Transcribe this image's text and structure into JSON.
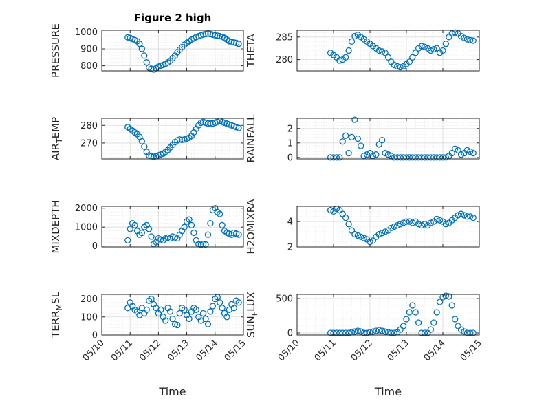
{
  "figure": {
    "title": "Figure 2 high",
    "colors": {
      "marker": "#0072BD",
      "axis": "#262626",
      "grid": "#d9d9d9"
    }
  },
  "chart_data": [
    {
      "type": "scatter",
      "ylabel": "PRESSURE",
      "xlabel": "",
      "title": "Figure 2 high",
      "xlim": [
        "05/10",
        "05/15"
      ],
      "ylim": [
        770,
        1010
      ],
      "yticks": [
        800,
        900,
        1000
      ],
      "xticks": [
        "05/10",
        "05/11",
        "05/12",
        "05/13",
        "05/14",
        "05/15"
      ],
      "grid": true,
      "x": [
        "05/10 22:00",
        "05/11 00:00",
        "05/11 02:00",
        "05/11 04:00",
        "05/11 06:00",
        "05/11 08:00",
        "05/11 10:00",
        "05/11 12:00",
        "05/11 14:00",
        "05/11 16:00",
        "05/11 18:00",
        "05/11 20:00",
        "05/11 22:00",
        "05/12 00:00",
        "05/12 02:00",
        "05/12 04:00",
        "05/12 06:00",
        "05/12 08:00",
        "05/12 10:00",
        "05/12 12:00",
        "05/12 14:00",
        "05/12 16:00",
        "05/12 18:00",
        "05/12 20:00",
        "05/12 22:00",
        "05/13 00:00",
        "05/13 02:00",
        "05/13 04:00",
        "05/13 06:00",
        "05/13 08:00",
        "05/13 10:00",
        "05/13 12:00",
        "05/13 14:00",
        "05/13 16:00",
        "05/13 18:00",
        "05/13 20:00",
        "05/13 22:00",
        "05/14 00:00",
        "05/14 02:00",
        "05/14 04:00",
        "05/14 06:00",
        "05/14 08:00",
        "05/14 10:00",
        "05/14 12:00",
        "05/14 14:00",
        "05/14 16:00",
        "05/14 18:00",
        "05/14 20:00"
      ],
      "y": [
        968,
        965,
        958,
        952,
        945,
        930,
        900,
        860,
        820,
        790,
        782,
        778,
        785,
        795,
        800,
        805,
        812,
        820,
        830,
        845,
        860,
        880,
        895,
        910,
        925,
        935,
        945,
        955,
        962,
        970,
        975,
        980,
        985,
        988,
        990,
        988,
        984,
        980,
        978,
        975,
        972,
        965,
        955,
        945,
        940,
        938,
        935,
        930
      ]
    },
    {
      "type": "scatter",
      "ylabel": "THETA",
      "xlabel": "",
      "xlim": [
        "05/10",
        "05/15"
      ],
      "ylim": [
        277.5,
        286.5
      ],
      "yticks": [
        280,
        285
      ],
      "xticks": [
        "05/10",
        "05/11",
        "05/12",
        "05/13",
        "05/14",
        "05/15"
      ],
      "grid": true,
      "x": [
        "05/10 22:00",
        "05/11 00:00",
        "05/11 02:00",
        "05/11 04:00",
        "05/11 06:00",
        "05/11 08:00",
        "05/11 10:00",
        "05/11 12:00",
        "05/11 14:00",
        "05/11 16:00",
        "05/11 18:00",
        "05/11 20:00",
        "05/11 22:00",
        "05/12 00:00",
        "05/12 02:00",
        "05/12 04:00",
        "05/12 06:00",
        "05/12 08:00",
        "05/12 10:00",
        "05/12 12:00",
        "05/12 14:00",
        "05/12 16:00",
        "05/12 18:00",
        "05/12 20:00",
        "05/12 22:00",
        "05/13 00:00",
        "05/13 02:00",
        "05/13 04:00",
        "05/13 06:00",
        "05/13 08:00",
        "05/13 10:00",
        "05/13 12:00",
        "05/13 14:00",
        "05/13 16:00",
        "05/13 18:00",
        "05/13 20:00",
        "05/13 22:00",
        "05/14 00:00",
        "05/14 02:00",
        "05/14 04:00",
        "05/14 06:00",
        "05/14 08:00",
        "05/14 10:00",
        "05/14 12:00",
        "05/14 14:00",
        "05/14 16:00",
        "05/14 18:00",
        "05/14 20:00"
      ],
      "y": [
        281.5,
        281.0,
        280.5,
        279.8,
        280.0,
        280.5,
        282.0,
        284.0,
        285.2,
        285.5,
        285.0,
        284.5,
        284.0,
        283.5,
        283.0,
        282.5,
        282.0,
        281.8,
        281.5,
        280.5,
        279.5,
        278.8,
        278.5,
        278.3,
        278.5,
        279.0,
        279.5,
        280.5,
        281.5,
        282.5,
        283.0,
        282.8,
        282.5,
        282.0,
        282.3,
        282.5,
        281.5,
        282.0,
        283.5,
        285.0,
        285.8,
        286.0,
        285.8,
        285.2,
        284.8,
        284.5,
        284.3,
        284.2
      ]
    },
    {
      "type": "scatter",
      "ylabel": "AIR_T_EMP",
      "xlabel": "",
      "xlim": [
        "05/10",
        "05/15"
      ],
      "ylim": [
        261,
        284
      ],
      "yticks": [
        270,
        280
      ],
      "xticks": [
        "05/10",
        "05/11",
        "05/12",
        "05/13",
        "05/14",
        "05/15"
      ],
      "grid": true,
      "x": [
        "05/10 22:00",
        "05/11 00:00",
        "05/11 02:00",
        "05/11 04:00",
        "05/11 06:00",
        "05/11 08:00",
        "05/11 10:00",
        "05/11 12:00",
        "05/11 14:00",
        "05/11 16:00",
        "05/11 18:00",
        "05/11 20:00",
        "05/11 22:00",
        "05/12 00:00",
        "05/12 02:00",
        "05/12 04:00",
        "05/12 06:00",
        "05/12 08:00",
        "05/12 10:00",
        "05/12 12:00",
        "05/12 14:00",
        "05/12 16:00",
        "05/12 18:00",
        "05/12 20:00",
        "05/12 22:00",
        "05/13 00:00",
        "05/13 02:00",
        "05/13 04:00",
        "05/13 06:00",
        "05/13 08:00",
        "05/13 10:00",
        "05/13 12:00",
        "05/13 14:00",
        "05/13 16:00",
        "05/13 18:00",
        "05/13 20:00",
        "05/13 22:00",
        "05/14 00:00",
        "05/14 02:00",
        "05/14 04:00",
        "05/14 06:00",
        "05/14 08:00",
        "05/14 10:00",
        "05/14 12:00",
        "05/14 14:00",
        "05/14 16:00",
        "05/14 18:00",
        "05/14 20:00"
      ],
      "y": [
        279.0,
        278.0,
        277.0,
        276.0,
        275.0,
        273.5,
        271.0,
        268.0,
        265.0,
        263.0,
        262.5,
        262.2,
        262.5,
        263.0,
        263.5,
        264.0,
        265.0,
        266.0,
        267.5,
        269.0,
        270.5,
        271.5,
        272.0,
        271.8,
        272.0,
        272.5,
        273.0,
        274.0,
        276.0,
        278.0,
        280.0,
        281.5,
        282.0,
        281.5,
        281.0,
        281.2,
        281.0,
        281.5,
        282.0,
        282.5,
        282.0,
        281.5,
        281.0,
        280.5,
        280.0,
        279.5,
        279.0,
        278.5
      ]
    },
    {
      "type": "scatter",
      "ylabel": "RAINFALL",
      "xlabel": "",
      "xlim": [
        "05/10",
        "05/15"
      ],
      "ylim": [
        -0.1,
        2.7
      ],
      "yticks": [
        0,
        1,
        2
      ],
      "xticks": [
        "05/10",
        "05/11",
        "05/12",
        "05/13",
        "05/14",
        "05/15"
      ],
      "grid": true,
      "x": [
        "05/10 22:00",
        "05/11 00:00",
        "05/11 02:00",
        "05/11 04:00",
        "05/11 06:00",
        "05/11 08:00",
        "05/11 10:00",
        "05/11 12:00",
        "05/11 14:00",
        "05/11 16:00",
        "05/11 18:00",
        "05/11 20:00",
        "05/11 22:00",
        "05/12 00:00",
        "05/12 02:00",
        "05/12 04:00",
        "05/12 06:00",
        "05/12 08:00",
        "05/12 10:00",
        "05/12 12:00",
        "05/12 14:00",
        "05/12 16:00",
        "05/12 18:00",
        "05/12 20:00",
        "05/12 22:00",
        "05/13 00:00",
        "05/13 02:00",
        "05/13 04:00",
        "05/13 06:00",
        "05/13 08:00",
        "05/13 10:00",
        "05/13 12:00",
        "05/13 14:00",
        "05/13 16:00",
        "05/13 18:00",
        "05/13 20:00",
        "05/13 22:00",
        "05/14 00:00",
        "05/14 02:00",
        "05/14 04:00",
        "05/14 06:00",
        "05/14 08:00",
        "05/14 10:00",
        "05/14 12:00",
        "05/14 14:00",
        "05/14 16:00",
        "05/14 18:00",
        "05/14 20:00"
      ],
      "y": [
        0,
        0,
        0,
        0,
        1.1,
        1.5,
        0.3,
        1.4,
        2.6,
        1.3,
        0.8,
        0.1,
        0.2,
        0.3,
        0.1,
        0.2,
        0.9,
        1.2,
        0.3,
        0.2,
        0.1,
        0,
        0,
        0,
        0,
        0,
        0,
        0,
        0,
        0,
        0,
        0,
        0,
        0,
        0,
        0,
        0,
        0,
        0,
        0.1,
        0.3,
        0.6,
        0.5,
        0.2,
        0.3,
        0.5,
        0.4,
        0.3
      ]
    },
    {
      "type": "scatter",
      "ylabel": "MIXDEPTH",
      "xlabel": "",
      "xlim": [
        "05/10",
        "05/15"
      ],
      "ylim": [
        -50,
        2100
      ],
      "yticks": [
        0,
        1000,
        2000
      ],
      "xticks": [
        "05/10",
        "05/11",
        "05/12",
        "05/13",
        "05/14",
        "05/15"
      ],
      "grid": true,
      "x": [
        "05/10 22:00",
        "05/11 00:00",
        "05/11 02:00",
        "05/11 04:00",
        "05/11 06:00",
        "05/11 08:00",
        "05/11 10:00",
        "05/11 12:00",
        "05/11 14:00",
        "05/11 16:00",
        "05/11 18:00",
        "05/11 20:00",
        "05/11 22:00",
        "05/12 00:00",
        "05/12 02:00",
        "05/12 04:00",
        "05/12 06:00",
        "05/12 08:00",
        "05/12 10:00",
        "05/12 12:00",
        "05/12 14:00",
        "05/12 16:00",
        "05/12 18:00",
        "05/12 20:00",
        "05/12 22:00",
        "05/13 00:00",
        "05/13 02:00",
        "05/13 04:00",
        "05/13 06:00",
        "05/13 08:00",
        "05/13 10:00",
        "05/13 12:00",
        "05/13 14:00",
        "05/13 16:00",
        "05/13 18:00",
        "05/13 20:00",
        "05/13 22:00",
        "05/14 00:00",
        "05/14 02:00",
        "05/14 04:00",
        "05/14 06:00",
        "05/14 08:00",
        "05/14 10:00",
        "05/14 12:00",
        "05/14 14:00",
        "05/14 16:00",
        "05/14 18:00",
        "05/14 20:00"
      ],
      "y": [
        300,
        900,
        1200,
        1100,
        800,
        600,
        700,
        1000,
        1100,
        900,
        500,
        100,
        200,
        400,
        350,
        300,
        400,
        450,
        400,
        500,
        450,
        400,
        600,
        800,
        1000,
        1300,
        1400,
        1100,
        700,
        300,
        100,
        50,
        100,
        80,
        600,
        1200,
        1900,
        2000,
        1800,
        1700,
        1100,
        800,
        700,
        650,
        600,
        700,
        650,
        600
      ]
    },
    {
      "type": "scatter",
      "ylabel": "H2OMIXRA",
      "xlabel": "",
      "xlim": [
        "05/10",
        "05/15"
      ],
      "ylim": [
        2,
        5.2
      ],
      "yticks": [
        2,
        4
      ],
      "xticks": [
        "05/10",
        "05/11",
        "05/12",
        "05/13",
        "05/14",
        "05/15"
      ],
      "grid": true,
      "x": [
        "05/10 22:00",
        "05/11 00:00",
        "05/11 02:00",
        "05/11 04:00",
        "05/11 06:00",
        "05/11 08:00",
        "05/11 10:00",
        "05/11 12:00",
        "05/11 14:00",
        "05/11 16:00",
        "05/11 18:00",
        "05/11 20:00",
        "05/11 22:00",
        "05/12 00:00",
        "05/12 02:00",
        "05/12 04:00",
        "05/12 06:00",
        "05/12 08:00",
        "05/12 10:00",
        "05/12 12:00",
        "05/12 14:00",
        "05/12 16:00",
        "05/12 18:00",
        "05/12 20:00",
        "05/12 22:00",
        "05/13 00:00",
        "05/13 02:00",
        "05/13 04:00",
        "05/13 06:00",
        "05/13 08:00",
        "05/13 10:00",
        "05/13 12:00",
        "05/13 14:00",
        "05/13 16:00",
        "05/13 18:00",
        "05/13 20:00",
        "05/13 22:00",
        "05/14 00:00",
        "05/14 02:00",
        "05/14 04:00",
        "05/14 06:00",
        "05/14 08:00",
        "05/14 10:00",
        "05/14 12:00",
        "05/14 14:00",
        "05/14 16:00",
        "05/14 18:00",
        "05/14 20:00"
      ],
      "y": [
        4.9,
        4.8,
        5.0,
        4.9,
        4.6,
        4.3,
        3.8,
        3.3,
        3.0,
        2.9,
        2.8,
        2.7,
        2.6,
        2.4,
        2.5,
        2.8,
        3.0,
        3.1,
        3.2,
        3.3,
        3.5,
        3.6,
        3.7,
        3.8,
        3.9,
        4.0,
        4.0,
        3.9,
        4.0,
        3.8,
        3.7,
        3.8,
        3.7,
        3.9,
        4.0,
        4.2,
        4.1,
        4.0,
        3.8,
        3.9,
        4.1,
        4.3,
        4.5,
        4.6,
        4.5,
        4.4,
        4.4,
        4.3
      ]
    },
    {
      "type": "scatter",
      "ylabel": "TERR_M_SL",
      "xlabel": "Time",
      "xlim": [
        "05/10",
        "05/15"
      ],
      "ylim": [
        0,
        225
      ],
      "yticks": [
        0,
        100,
        200
      ],
      "xticks": [
        "05/10",
        "05/11",
        "05/12",
        "05/13",
        "05/14",
        "05/15"
      ],
      "grid": true,
      "x": [
        "05/10 22:00",
        "05/11 00:00",
        "05/11 02:00",
        "05/11 04:00",
        "05/11 06:00",
        "05/11 08:00",
        "05/11 10:00",
        "05/11 12:00",
        "05/11 14:00",
        "05/11 16:00",
        "05/11 18:00",
        "05/11 20:00",
        "05/11 22:00",
        "05/12 00:00",
        "05/12 02:00",
        "05/12 04:00",
        "05/12 06:00",
        "05/12 08:00",
        "05/12 10:00",
        "05/12 12:00",
        "05/12 14:00",
        "05/12 16:00",
        "05/12 18:00",
        "05/12 20:00",
        "05/12 22:00",
        "05/13 00:00",
        "05/13 02:00",
        "05/13 04:00",
        "05/13 06:00",
        "05/13 08:00",
        "05/13 10:00",
        "05/13 12:00",
        "05/13 14:00",
        "05/13 16:00",
        "05/13 18:00",
        "05/13 20:00",
        "05/13 22:00",
        "05/14 00:00",
        "05/14 02:00",
        "05/14 04:00",
        "05/14 06:00",
        "05/14 08:00",
        "05/14 10:00",
        "05/14 12:00",
        "05/14 14:00",
        "05/14 16:00",
        "05/14 18:00",
        "05/14 20:00"
      ],
      "y": [
        150,
        180,
        160,
        140,
        130,
        110,
        150,
        120,
        140,
        190,
        200,
        170,
        150,
        120,
        140,
        100,
        80,
        150,
        130,
        90,
        60,
        55,
        120,
        150,
        140,
        110,
        90,
        130,
        150,
        140,
        100,
        80,
        120,
        90,
        60,
        130,
        160,
        200,
        210,
        180,
        150,
        120,
        100,
        140,
        170,
        150,
        190,
        180
      ]
    },
    {
      "type": "scatter",
      "ylabel": "SUN_F_LUX",
      "xlabel": "Time",
      "xlim": [
        "05/10",
        "05/15"
      ],
      "ylim": [
        -30,
        560
      ],
      "yticks": [
        0,
        500
      ],
      "xticks": [
        "05/10",
        "05/11",
        "05/12",
        "05/13",
        "05/14",
        "05/15"
      ],
      "grid": true,
      "x": [
        "05/10 22:00",
        "05/11 00:00",
        "05/11 02:00",
        "05/11 04:00",
        "05/11 06:00",
        "05/11 08:00",
        "05/11 10:00",
        "05/11 12:00",
        "05/11 14:00",
        "05/11 16:00",
        "05/11 18:00",
        "05/11 20:00",
        "05/11 22:00",
        "05/12 00:00",
        "05/12 02:00",
        "05/12 04:00",
        "05/12 06:00",
        "05/12 08:00",
        "05/12 10:00",
        "05/12 12:00",
        "05/12 14:00",
        "05/12 16:00",
        "05/12 18:00",
        "05/12 20:00",
        "05/12 22:00",
        "05/13 00:00",
        "05/13 02:00",
        "05/13 04:00",
        "05/13 06:00",
        "05/13 08:00",
        "05/13 10:00",
        "05/13 12:00",
        "05/13 14:00",
        "05/13 16:00",
        "05/13 18:00",
        "05/13 20:00",
        "05/13 22:00",
        "05/14 00:00",
        "05/14 02:00",
        "05/14 04:00",
        "05/14 06:00",
        "05/14 08:00",
        "05/14 10:00",
        "05/14 12:00",
        "05/14 14:00",
        "05/14 16:00",
        "05/14 18:00",
        "05/14 20:00"
      ],
      "y": [
        0,
        0,
        0,
        0,
        0,
        0,
        0,
        10,
        20,
        30,
        20,
        0,
        0,
        10,
        20,
        30,
        40,
        30,
        20,
        10,
        0,
        0,
        10,
        50,
        100,
        200,
        300,
        400,
        300,
        150,
        0,
        0,
        0,
        50,
        150,
        300,
        450,
        520,
        540,
        530,
        400,
        200,
        100,
        50,
        20,
        0,
        0,
        0
      ]
    }
  ]
}
